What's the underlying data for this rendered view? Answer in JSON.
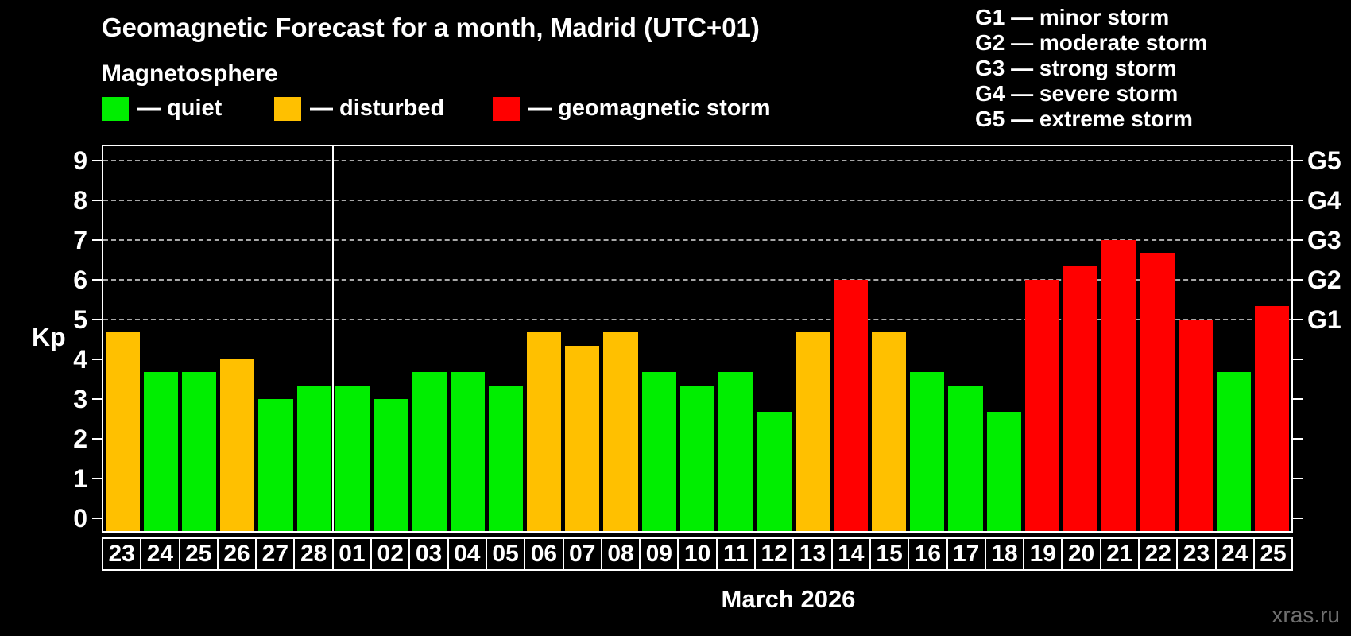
{
  "header": {
    "title": "Geomagnetic Forecast for a month, Madrid (UTC+01)",
    "subtitle": "Magnetosphere"
  },
  "legend": {
    "items": [
      {
        "status": "quiet",
        "label": "— quiet",
        "color": "#00ee00"
      },
      {
        "status": "disturbed",
        "label": "— disturbed",
        "color": "#ffc000"
      },
      {
        "status": "storm",
        "label": "— geomagnetic storm",
        "color": "#ff0000"
      }
    ]
  },
  "storm_scale": {
    "items": [
      {
        "code": "G1",
        "label": "G1 — minor storm",
        "kp": 5
      },
      {
        "code": "G2",
        "label": "G2 — moderate storm",
        "kp": 6
      },
      {
        "code": "G3",
        "label": "G3 — strong storm",
        "kp": 7
      },
      {
        "code": "G4",
        "label": "G4 — severe storm",
        "kp": 8
      },
      {
        "code": "G5",
        "label": "G5 — extreme storm",
        "kp": 9
      }
    ]
  },
  "chart_data": {
    "type": "bar",
    "title": "Geomagnetic Forecast for a month, Madrid (UTC+01)",
    "ylabel": "Kp",
    "xlabel": "March 2026",
    "ylim": [
      0,
      9
    ],
    "grid": "dashed horizontal lines at Kp 5-9 only",
    "grid_levels": [
      5,
      6,
      7,
      8,
      9
    ],
    "month_separator_after_index": 5,
    "categories": [
      "23",
      "24",
      "25",
      "26",
      "27",
      "28",
      "01",
      "02",
      "03",
      "04",
      "05",
      "06",
      "07",
      "08",
      "09",
      "10",
      "11",
      "12",
      "13",
      "14",
      "15",
      "16",
      "17",
      "18",
      "19",
      "20",
      "21",
      "22",
      "23",
      "24",
      "25"
    ],
    "values": [
      4.67,
      3.67,
      3.67,
      4.0,
      3.0,
      3.33,
      3.33,
      3.0,
      3.67,
      3.67,
      3.33,
      4.67,
      4.33,
      4.67,
      3.67,
      3.33,
      3.67,
      2.67,
      4.67,
      6.0,
      4.67,
      3.67,
      3.33,
      2.67,
      6.0,
      6.33,
      7.0,
      6.67,
      5.0,
      3.67,
      5.33
    ],
    "statuses": [
      "disturbed",
      "quiet",
      "quiet",
      "disturbed",
      "quiet",
      "quiet",
      "quiet",
      "quiet",
      "quiet",
      "quiet",
      "quiet",
      "disturbed",
      "disturbed",
      "disturbed",
      "quiet",
      "quiet",
      "quiet",
      "quiet",
      "disturbed",
      "storm",
      "disturbed",
      "quiet",
      "quiet",
      "quiet",
      "storm",
      "storm",
      "storm",
      "storm",
      "storm",
      "quiet",
      "storm"
    ],
    "colors": {
      "quiet": "#00ee00",
      "disturbed": "#ffc000",
      "storm": "#ff0000"
    }
  },
  "footer": {
    "watermark": "xras.ru"
  }
}
